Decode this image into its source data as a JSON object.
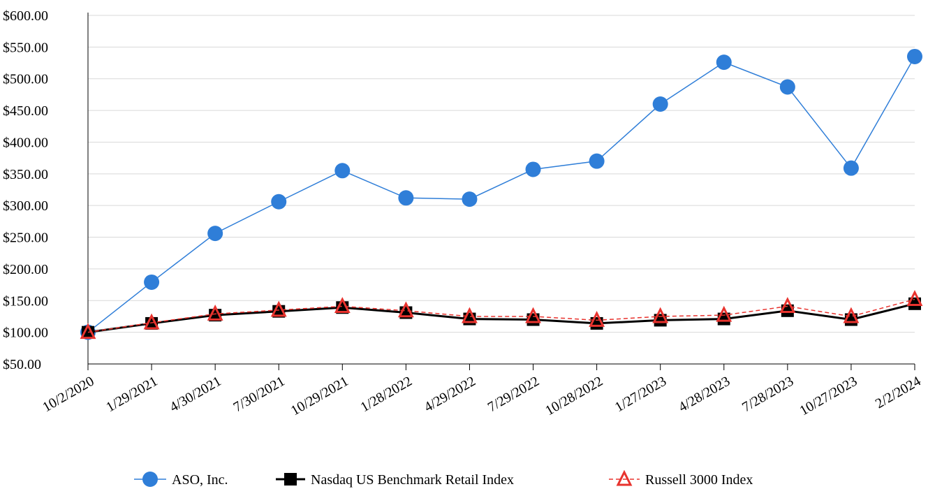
{
  "chart_data": {
    "type": "line",
    "x": [
      "10/2/2020",
      "1/29/2021",
      "4/30/2021",
      "7/30/2021",
      "10/29/2021",
      "1/28/2022",
      "4/29/2022",
      "7/29/2022",
      "10/28/2022",
      "1/27/2023",
      "4/28/2023",
      "7/28/2023",
      "10/27/2023",
      "2/2/2024"
    ],
    "ylim": [
      50,
      600
    ],
    "yticks": [
      50,
      100,
      150,
      200,
      250,
      300,
      350,
      400,
      450,
      500,
      550,
      600
    ],
    "ytick_labels": [
      "$50.00",
      "$100.00",
      "$150.00",
      "$200.00",
      "$250.00",
      "$300.00",
      "$350.00",
      "$400.00",
      "$450.00",
      "$500.00",
      "$550.00",
      "$600.00"
    ],
    "grid": "horizontal",
    "legend_position": "bottom",
    "series": [
      {
        "name": "ASO, Inc.",
        "color": "#2F7ED8",
        "marker": "circle",
        "line_style": "solid",
        "values": [
          100,
          179,
          256,
          306,
          355,
          312,
          310,
          357,
          370,
          460,
          526,
          487,
          359,
          535
        ]
      },
      {
        "name": "Nasdaq US Benchmark Retail Index",
        "color": "#000000",
        "marker": "square",
        "line_style": "solid",
        "values": [
          100,
          114,
          127,
          133,
          139,
          131,
          121,
          120,
          114,
          119,
          121,
          134,
          120,
          145
        ]
      },
      {
        "name": "Russell 3000 Index",
        "color": "#E8332E",
        "marker": "triangle",
        "line_style": "dashed",
        "values": [
          100,
          115,
          129,
          135,
          141,
          134,
          125,
          125,
          119,
          125,
          127,
          141,
          125,
          152
        ]
      }
    ]
  }
}
